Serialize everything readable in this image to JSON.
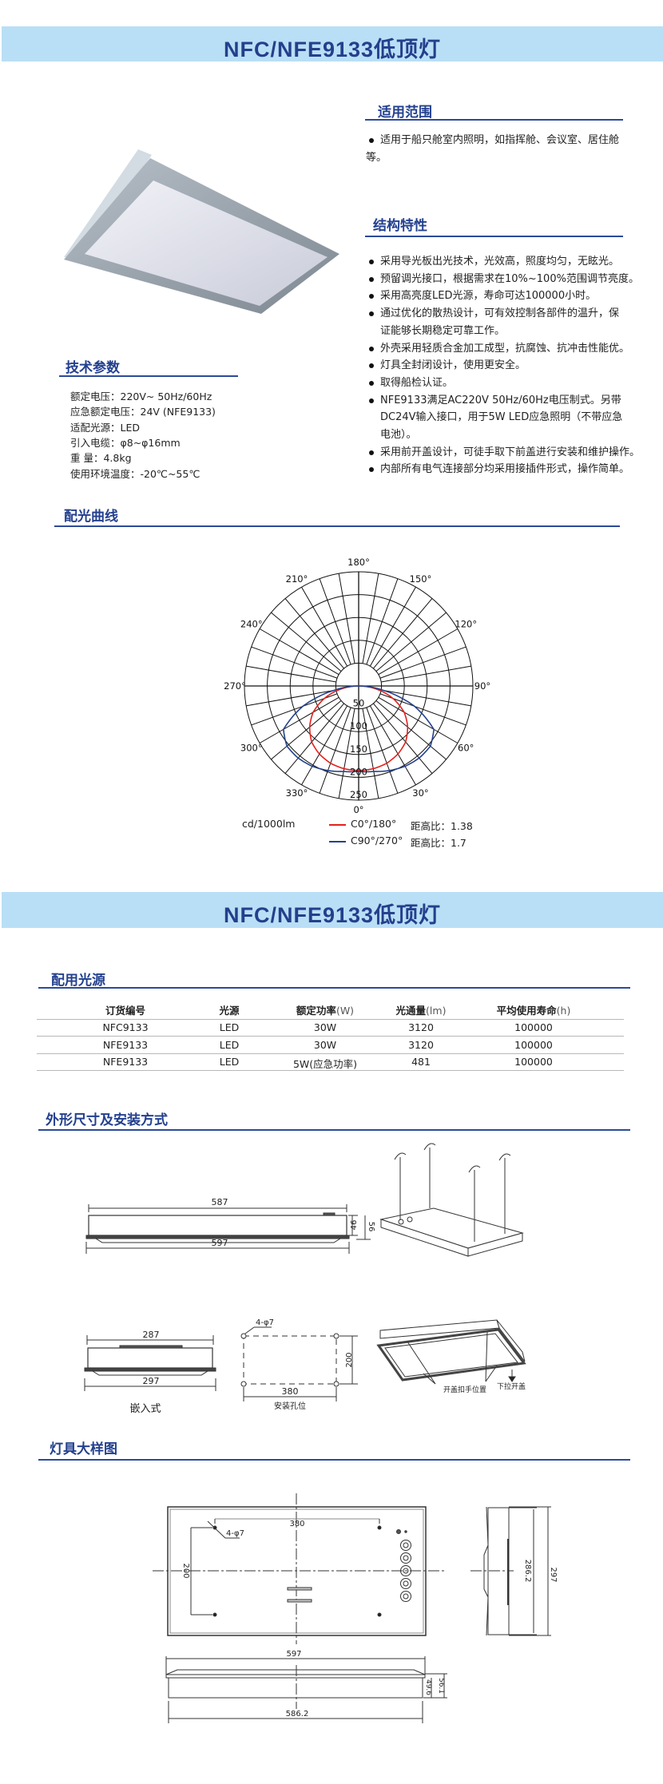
{
  "banner_1": {
    "title": "NFC/NFE9133低顶灯"
  },
  "banner_2": {
    "title": "NFC/NFE9133低顶灯"
  },
  "colors": {
    "banner_bg": "#b9dff6",
    "heading": "#23408f",
    "red_curve": "#e3211c",
    "blue_curve": "#24418c"
  },
  "application": {
    "heading": "适用范围",
    "text_line1": "适用于船只舱室内照明，如指挥舱、会议室、居住舱",
    "text_line2": "等。"
  },
  "features": {
    "heading": "结构特性",
    "items": [
      {
        "lines": [
          "采用导光板出光技术，光效高，照度均匀，无眩光。"
        ]
      },
      {
        "lines": [
          "预留调光接口，根据需求在10%~100%范围调节亮度。"
        ]
      },
      {
        "lines": [
          "采用高亮度LED光源，寿命可达100000小时。"
        ]
      },
      {
        "lines": [
          "通过优化的散热设计，可有效控制各部件的温升，保",
          "证能够长期稳定可靠工作。"
        ]
      },
      {
        "lines": [
          " 外壳采用轻质合金加工成型，抗腐蚀、抗冲击性能优。"
        ]
      },
      {
        "lines": [
          "灯具全封闭设计，使用更安全。"
        ]
      },
      {
        "lines": [
          "取得船检认证。"
        ]
      },
      {
        "lines": [
          "NFE9133满足AC220V 50Hz/60Hz电压制式。另带",
          "DC24V输入接口，用于5W LED应急照明（不带应急",
          " 电池）。"
        ]
      },
      {
        "lines": [
          "采用前开盖设计，可徒手取下前盖进行安装和维护操作。"
        ]
      },
      {
        "lines": [
          "内部所有电气连接部分均采用接插件形式，操作简单。"
        ]
      }
    ]
  },
  "specs": {
    "heading": "技术参数",
    "lines": [
      "额定电压：220V~    50Hz/60Hz",
      "应急额定电压：24V   (NFE9133)",
      "适配光源：LED",
      "引入电缆：φ8~φ16mm",
      "重    量：4.8kg",
      "使用环境温度：-20℃~55℃"
    ]
  },
  "photometric": {
    "heading": "配光曲线"
  },
  "chart_data": {
    "type": "polar",
    "unit_label": "cd/1000lm",
    "radial_ticks": [
      50,
      100,
      150,
      200,
      250
    ],
    "rlim": [
      0,
      250
    ],
    "angle_labels": [
      "0°",
      "30°",
      "60°",
      "90°",
      "120°",
      "150°",
      "180°",
      "210°",
      "240°",
      "270°",
      "300°",
      "330°"
    ],
    "angle_label_values": [
      0,
      30,
      60,
      90,
      120,
      150,
      180,
      210,
      240,
      270,
      300,
      330
    ],
    "angles": [
      0,
      10,
      20,
      30,
      40,
      50,
      60,
      70,
      80,
      90
    ],
    "series": [
      {
        "name": "C0°/180°",
        "ratio_label": "距高比：1.38",
        "color": "#e3211c",
        "values": [
          185,
          184,
          180,
          172,
          160,
          140,
          115,
          80,
          40,
          0
        ]
      },
      {
        "name": "C90°/270°",
        "ratio_label": "距高比：1.7",
        "color": "#24418c",
        "values": [
          187,
          190,
          197,
          203,
          206,
          205,
          190,
          130,
          55,
          0
        ]
      }
    ]
  },
  "light_source": {
    "heading": "配用光源",
    "columns": [
      {
        "label": "订货编号",
        "unit": ""
      },
      {
        "label": "光源",
        "unit": ""
      },
      {
        "label": "额定功率",
        "unit": "(W)"
      },
      {
        "label": "光通量",
        "unit": "(lm)"
      },
      {
        "label": "平均使用寿命",
        "unit": "(h)"
      }
    ],
    "rows": [
      [
        "NFC9133",
        "LED",
        "30W",
        "3120",
        "100000"
      ],
      [
        "NFE9133",
        "LED",
        "30W",
        "3120",
        "100000"
      ],
      [
        "NFE9133",
        "LED",
        "5W(应急功率)",
        "481",
        "100000"
      ]
    ]
  },
  "dimensions": {
    "heading": "外形尺寸及安装方式",
    "front_top": "587",
    "front_bottom": "597",
    "front_h1": "46",
    "front_h2": "56",
    "side_top": "287",
    "side_bottom": "297",
    "recessed_label": "嵌入式",
    "holes_label": "4-φ7",
    "holes_h": "200",
    "holes_w": "380",
    "holes_caption": "安装孔位",
    "grip_label": "开盖扣手位置",
    "pull_label": "下拉开盖"
  },
  "detail": {
    "heading": "灯具大样图",
    "w380": "380",
    "holes": "4-φ7",
    "h200": "200",
    "d2862": "286.2",
    "d297": "297",
    "w597": "597",
    "w5862": "586.2",
    "h561": "56.1",
    "h496": "49.6"
  }
}
